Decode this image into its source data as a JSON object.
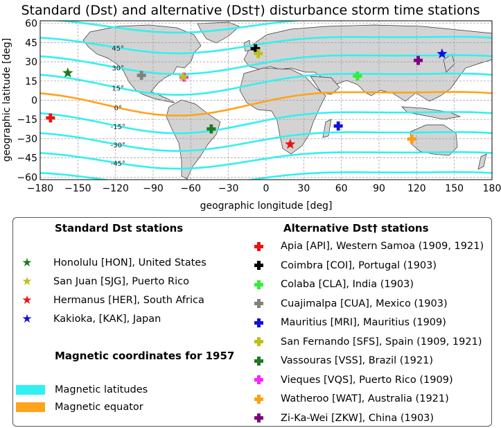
{
  "title": "Standard (Dst) and alternative (Dst†) disturbance storm time stations",
  "axes": {
    "xlabel": "geographic longitude [deg]",
    "ylabel": "geographic latitude [deg]",
    "xticks": [
      "−180",
      "−150",
      "−120",
      "−90",
      "−60",
      "−30",
      "0",
      "30",
      "60",
      "90",
      "120",
      "150",
      "180"
    ],
    "yticks": [
      "60",
      "45",
      "30",
      "15",
      "0",
      "−15",
      "−30",
      "−45",
      "−60"
    ]
  },
  "chart_data": {
    "type": "scatter",
    "xlim": [
      -180,
      180
    ],
    "ylim": [
      -62,
      62
    ],
    "grid": true,
    "magnetic_latitude_labels": [
      "45°",
      "30°",
      "15°",
      "0°",
      "-15°",
      "-30°",
      "-45°"
    ],
    "standard_stations": [
      {
        "lon": -158,
        "lat": 21.3,
        "color": "#1e7a1e",
        "marker": "star"
      },
      {
        "lon": -66,
        "lat": 18.1,
        "color": "#bfbf1a",
        "marker": "star"
      },
      {
        "lon": 19.2,
        "lat": -34.4,
        "color": "#ee1111",
        "marker": "star"
      },
      {
        "lon": 140.2,
        "lat": 36.2,
        "color": "#1111dd",
        "marker": "star"
      }
    ],
    "alternative_stations": [
      {
        "lon": -171.8,
        "lat": -13.8,
        "color": "#ee1111",
        "marker": "plus"
      },
      {
        "lon": -8.4,
        "lat": 40.2,
        "color": "#000000",
        "marker": "plus"
      },
      {
        "lon": 72.8,
        "lat": 18.9,
        "color": "#33ee33",
        "marker": "plus"
      },
      {
        "lon": -99.3,
        "lat": 19.4,
        "color": "#808080",
        "marker": "plus"
      },
      {
        "lon": 57.5,
        "lat": -20.1,
        "color": "#1111dd",
        "marker": "plus"
      },
      {
        "lon": -6.2,
        "lat": 36.5,
        "color": "#bfbf1a",
        "marker": "plus"
      },
      {
        "lon": -43.7,
        "lat": -22.4,
        "color": "#1e7a1e",
        "marker": "plus"
      },
      {
        "lon": -65.4,
        "lat": 18.1,
        "color": "#ff22ff",
        "marker": "plus"
      },
      {
        "lon": 116,
        "lat": -30.3,
        "color": "#ff9f10",
        "marker": "plus"
      },
      {
        "lon": 121.2,
        "lat": 31.1,
        "color": "#800080",
        "marker": "plus"
      }
    ],
    "magnetic_latitude_color": "#33f0f0",
    "magnetic_equator_color": "#ffa31a"
  },
  "legend": {
    "standard_header": "Standard Dst stations",
    "alternative_header": "Alternative Dst† stations",
    "coords_header": "Magnetic coordinates for 1957",
    "standard_items": [
      {
        "label": "Honolulu [HON], United States",
        "color": "#1e7a1e"
      },
      {
        "label": "San Juan [SJG], Puerto Rico",
        "color": "#bfbf1a"
      },
      {
        "label": "Hermanus [HER], South Africa",
        "color": "#ee1111"
      },
      {
        "label": "Kakioka, [KAK], Japan",
        "color": "#1111dd"
      }
    ],
    "alternative_items": [
      {
        "label": "Apia [API], Western Samoa (1909, 1921)",
        "color": "#ee1111"
      },
      {
        "label": "Coimbra [COI], Portugal (1903)",
        "color": "#000000"
      },
      {
        "label": "Colaba [CLA], India (1903)",
        "color": "#33ee33"
      },
      {
        "label": "Cuajimalpa [CUA], Mexico (1903)",
        "color": "#808080"
      },
      {
        "label": "Mauritius [MRI], Mauritius (1909)",
        "color": "#1111dd"
      },
      {
        "label": "San Fernando [SFS], Spain (1909, 1921)",
        "color": "#bfbf1a"
      },
      {
        "label": "Vassouras [VSS], Brazil (1921)",
        "color": "#1e7a1e"
      },
      {
        "label": "Vieques [VQS], Puerto Rico (1909)",
        "color": "#ff22ff"
      },
      {
        "label": "Watheroo [WAT], Australia (1921)",
        "color": "#ff9f10"
      },
      {
        "label": "Zi-Ka-Wei [ZKW], China (1903)",
        "color": "#800080"
      }
    ],
    "coord_items": [
      {
        "label": "Magnetic latitudes",
        "color": "#33f0f0"
      },
      {
        "label": "Magnetic equator",
        "color": "#ffa31a"
      }
    ]
  }
}
